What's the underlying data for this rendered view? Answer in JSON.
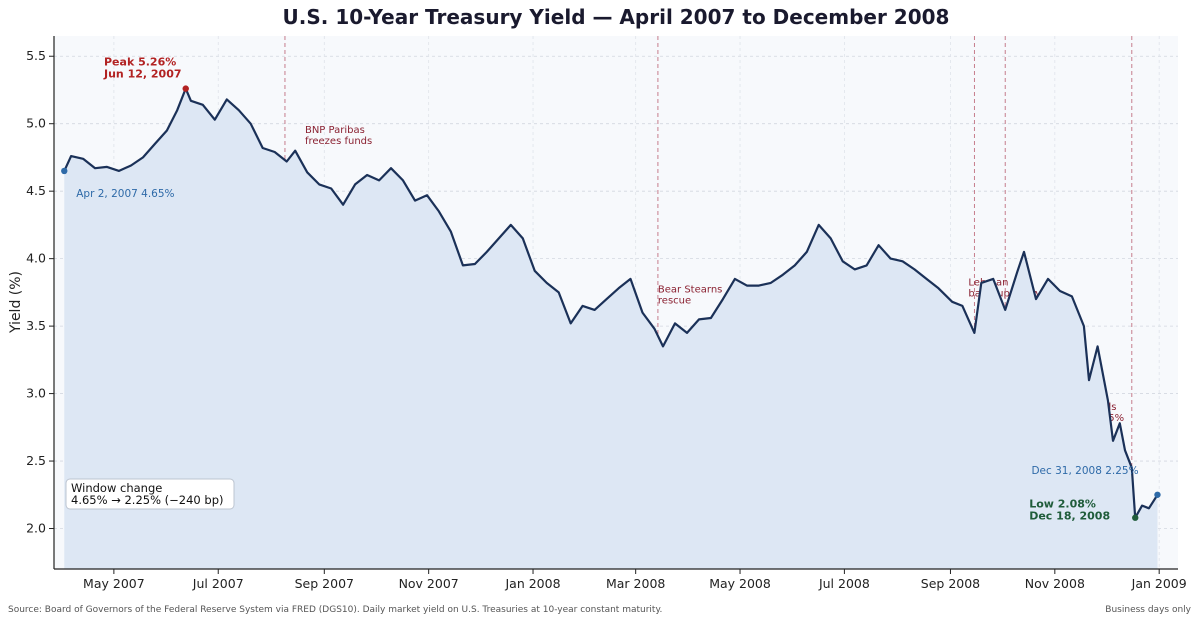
{
  "chart_data": {
    "type": "line",
    "title": "U.S. 10-Year Treasury Yield — April 2007 to December 2008",
    "ylabel": "Yield (%)",
    "xlabel": "",
    "ylim": [
      1.7,
      5.65
    ],
    "xlim": [
      "2007-03-27",
      "2009-01-12"
    ],
    "yticks": [
      "2.0",
      "2.5",
      "3.0",
      "3.5",
      "4.0",
      "4.5",
      "5.0",
      "5.5"
    ],
    "xticks": [
      {
        "date": "2007-05-01",
        "label": "May 2007"
      },
      {
        "date": "2007-07-01",
        "label": "Jul 2007"
      },
      {
        "date": "2007-09-01",
        "label": "Sep 2007"
      },
      {
        "date": "2007-11-01",
        "label": "Nov 2007"
      },
      {
        "date": "2008-01-01",
        "label": "Jan 2008"
      },
      {
        "date": "2008-03-01",
        "label": "Mar 2008"
      },
      {
        "date": "2008-05-01",
        "label": "May 2008"
      },
      {
        "date": "2008-07-01",
        "label": "Jul 2008"
      },
      {
        "date": "2008-09-01",
        "label": "Sep 2008"
      },
      {
        "date": "2008-11-01",
        "label": "Nov 2008"
      },
      {
        "date": "2009-01-01",
        "label": "Jan 2009"
      }
    ],
    "grid": true,
    "series": [
      {
        "name": "",
        "color": "#1b3158",
        "fill": "#dde7f4",
        "points": [
          [
            "2007-04-02",
            4.65
          ],
          [
            "2007-04-06",
            4.76
          ],
          [
            "2007-04-13",
            4.74
          ],
          [
            "2007-04-20",
            4.67
          ],
          [
            "2007-04-27",
            4.68
          ],
          [
            "2007-05-04",
            4.65
          ],
          [
            "2007-05-11",
            4.69
          ],
          [
            "2007-05-18",
            4.75
          ],
          [
            "2007-05-25",
            4.85
          ],
          [
            "2007-06-01",
            4.95
          ],
          [
            "2007-06-07",
            5.1
          ],
          [
            "2007-06-12",
            5.26
          ],
          [
            "2007-06-15",
            5.17
          ],
          [
            "2007-06-22",
            5.14
          ],
          [
            "2007-06-29",
            5.03
          ],
          [
            "2007-07-06",
            5.18
          ],
          [
            "2007-07-13",
            5.1
          ],
          [
            "2007-07-20",
            5.0
          ],
          [
            "2007-07-27",
            4.82
          ],
          [
            "2007-08-03",
            4.79
          ],
          [
            "2007-08-10",
            4.72
          ],
          [
            "2007-08-15",
            4.8
          ],
          [
            "2007-08-22",
            4.64
          ],
          [
            "2007-08-29",
            4.55
          ],
          [
            "2007-09-05",
            4.52
          ],
          [
            "2007-09-12",
            4.4
          ],
          [
            "2007-09-19",
            4.55
          ],
          [
            "2007-09-26",
            4.62
          ],
          [
            "2007-10-03",
            4.58
          ],
          [
            "2007-10-10",
            4.67
          ],
          [
            "2007-10-17",
            4.58
          ],
          [
            "2007-10-24",
            4.43
          ],
          [
            "2007-10-31",
            4.47
          ],
          [
            "2007-11-07",
            4.35
          ],
          [
            "2007-11-14",
            4.2
          ],
          [
            "2007-11-21",
            3.95
          ],
          [
            "2007-11-28",
            3.96
          ],
          [
            "2007-12-05",
            4.05
          ],
          [
            "2007-12-12",
            4.15
          ],
          [
            "2007-12-19",
            4.25
          ],
          [
            "2007-12-26",
            4.15
          ],
          [
            "2008-01-02",
            3.91
          ],
          [
            "2008-01-09",
            3.82
          ],
          [
            "2008-01-16",
            3.75
          ],
          [
            "2008-01-23",
            3.52
          ],
          [
            "2008-01-30",
            3.65
          ],
          [
            "2008-02-06",
            3.62
          ],
          [
            "2008-02-13",
            3.7
          ],
          [
            "2008-02-20",
            3.78
          ],
          [
            "2008-02-27",
            3.85
          ],
          [
            "2008-03-05",
            3.6
          ],
          [
            "2008-03-12",
            3.48
          ],
          [
            "2008-03-17",
            3.35
          ],
          [
            "2008-03-24",
            3.52
          ],
          [
            "2008-03-31",
            3.45
          ],
          [
            "2008-04-07",
            3.55
          ],
          [
            "2008-04-14",
            3.56
          ],
          [
            "2008-04-21",
            3.7
          ],
          [
            "2008-04-28",
            3.85
          ],
          [
            "2008-05-05",
            3.8
          ],
          [
            "2008-05-12",
            3.8
          ],
          [
            "2008-05-19",
            3.82
          ],
          [
            "2008-05-26",
            3.88
          ],
          [
            "2008-06-02",
            3.95
          ],
          [
            "2008-06-09",
            4.05
          ],
          [
            "2008-06-16",
            4.25
          ],
          [
            "2008-06-23",
            4.15
          ],
          [
            "2008-06-30",
            3.98
          ],
          [
            "2008-07-07",
            3.92
          ],
          [
            "2008-07-14",
            3.95
          ],
          [
            "2008-07-21",
            4.1
          ],
          [
            "2008-07-28",
            4.0
          ],
          [
            "2008-08-04",
            3.98
          ],
          [
            "2008-08-11",
            3.92
          ],
          [
            "2008-08-18",
            3.85
          ],
          [
            "2008-08-25",
            3.78
          ],
          [
            "2008-09-02",
            3.68
          ],
          [
            "2008-09-08",
            3.65
          ],
          [
            "2008-09-15",
            3.45
          ],
          [
            "2008-09-19",
            3.82
          ],
          [
            "2008-09-26",
            3.85
          ],
          [
            "2008-10-03",
            3.62
          ],
          [
            "2008-10-10",
            3.9
          ],
          [
            "2008-10-14",
            4.05
          ],
          [
            "2008-10-21",
            3.7
          ],
          [
            "2008-10-28",
            3.85
          ],
          [
            "2008-11-04",
            3.76
          ],
          [
            "2008-11-11",
            3.72
          ],
          [
            "2008-11-18",
            3.5
          ],
          [
            "2008-11-21",
            3.1
          ],
          [
            "2008-11-26",
            3.35
          ],
          [
            "2008-12-02",
            2.95
          ],
          [
            "2008-12-05",
            2.65
          ],
          [
            "2008-12-09",
            2.78
          ],
          [
            "2008-12-12",
            2.58
          ],
          [
            "2008-12-16",
            2.45
          ],
          [
            "2008-12-18",
            2.08
          ],
          [
            "2008-12-22",
            2.17
          ],
          [
            "2008-12-26",
            2.15
          ],
          [
            "2008-12-31",
            2.25
          ]
        ]
      }
    ],
    "events": [
      {
        "date": "2007-08-09",
        "label": "BNP Paribas\nfreezes funds",
        "color": "#c07080"
      },
      {
        "date": "2008-03-14",
        "label": "Bear Stearns\nrescue",
        "color": "#c07080"
      },
      {
        "date": "2008-09-15",
        "label": "Lehman\nbankruptcy",
        "color": "#c07080"
      },
      {
        "date": "2008-10-03",
        "label": "TARP\nsigned",
        "color": "#c07080"
      },
      {
        "date": "2008-12-16",
        "label": "Fed funds\nto 0–0.25%",
        "color": "#c07080"
      }
    ],
    "annotations": {
      "peak": {
        "date": "2007-06-12",
        "value": 5.26,
        "line1": "Peak  5.26%",
        "line2": "Jun 12, 2007"
      },
      "low": {
        "date": "2008-12-18",
        "value": 2.08,
        "line1": "Low  2.08%",
        "line2": "Dec 18, 2008"
      },
      "start": {
        "date": "2007-04-02",
        "value": 4.65,
        "text": "Apr 2, 2007   4.65%"
      },
      "end": {
        "date": "2008-12-31",
        "value": 2.25,
        "text": "Dec 31, 2008   2.25%"
      }
    },
    "summary_box": {
      "line1": "Window change",
      "line2": "4.65%  →  2.25%   (−240 bp)"
    },
    "source": "Source: Board of Governors of the Federal Reserve System via FRED (DGS10). Daily market yield on U.S. Treasuries at 10-year constant maturity.",
    "note": "Business days only"
  }
}
